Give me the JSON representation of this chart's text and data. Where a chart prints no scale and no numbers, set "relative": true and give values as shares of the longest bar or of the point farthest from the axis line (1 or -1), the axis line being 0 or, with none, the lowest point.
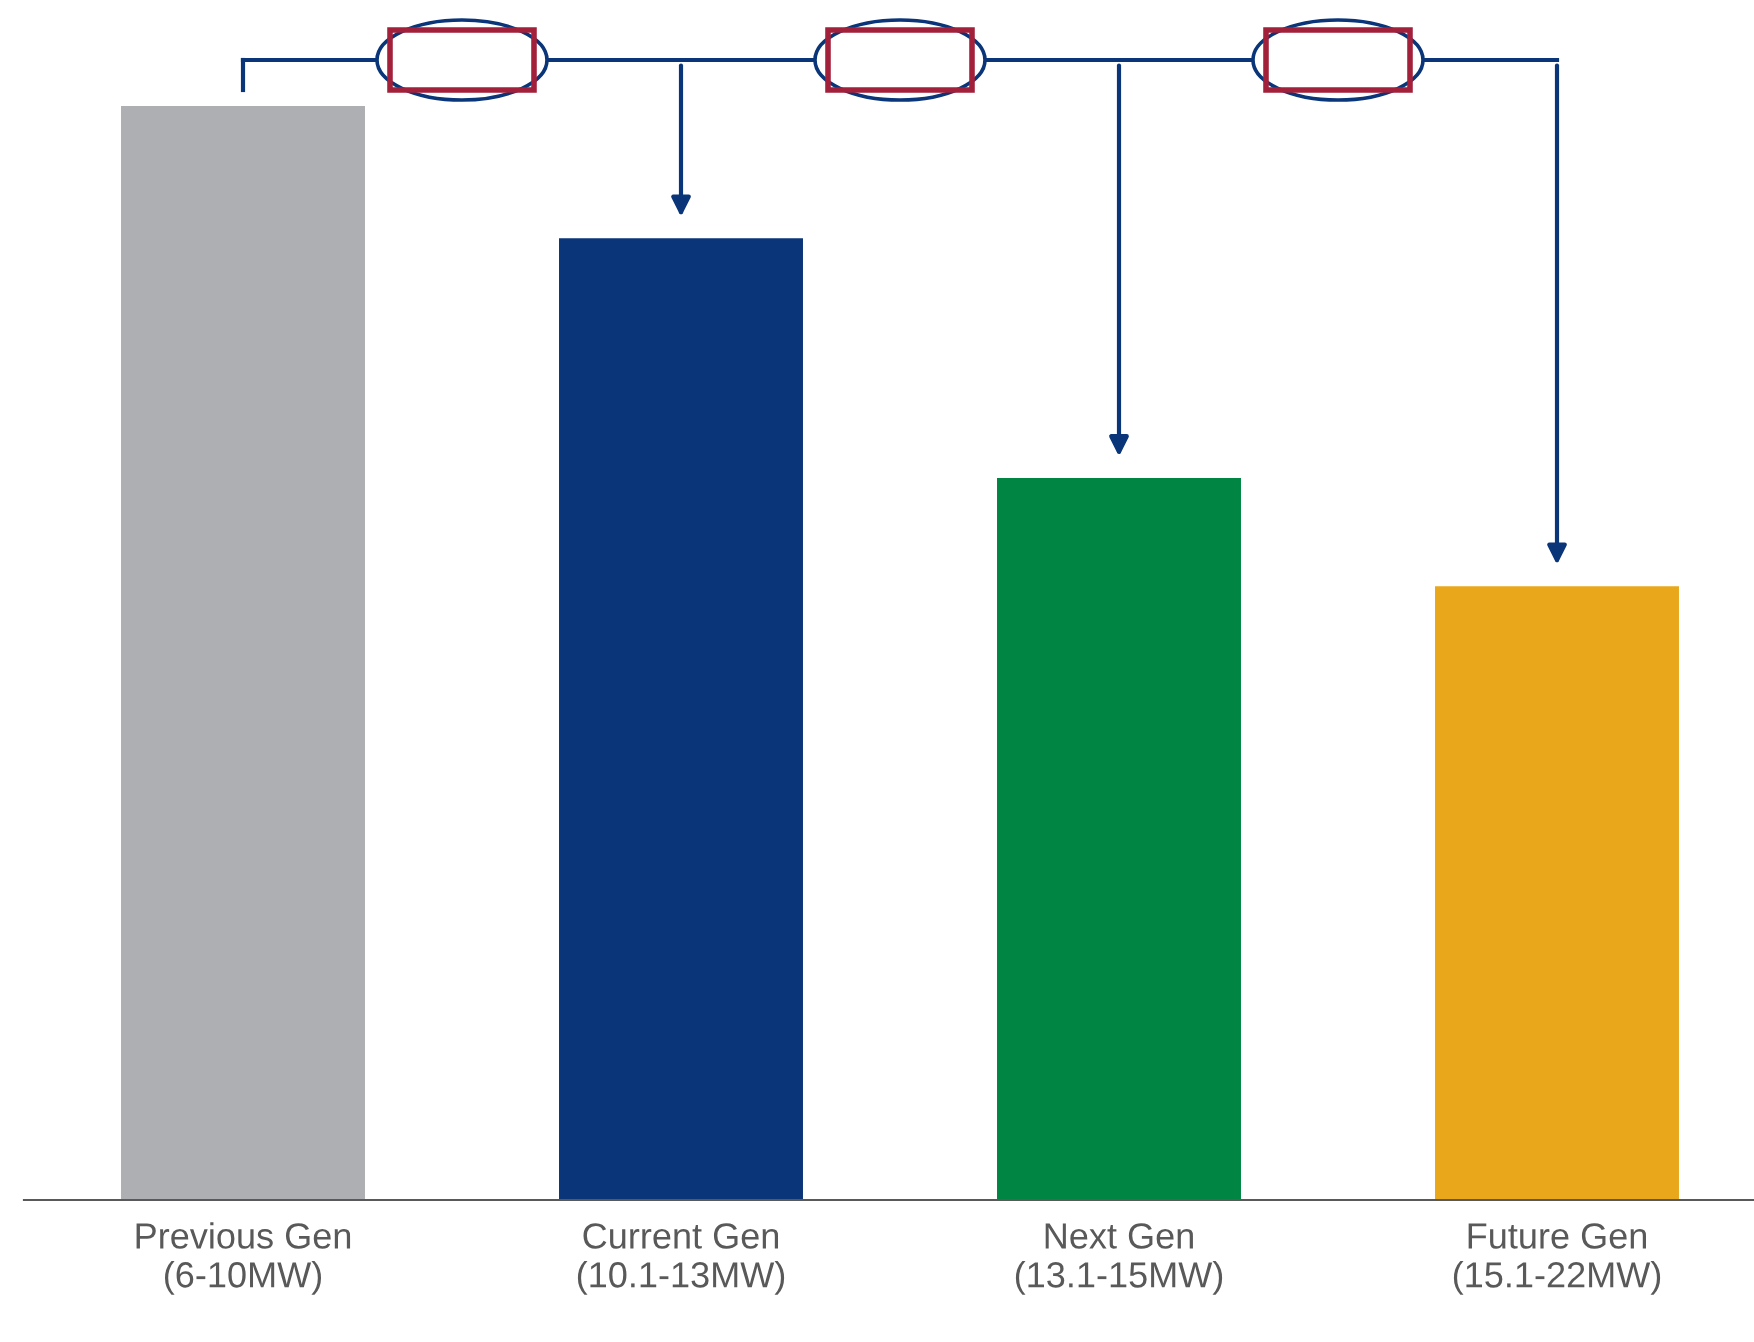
{
  "chart_data": {
    "type": "bar",
    "relative": true,
    "categories": [
      "Previous Gen\n(6-10MW)",
      "Current Gen\n(10.1-13MW)",
      "Next Gen\n(13.1-15MW)",
      "Future Gen\n(15.1-22MW)"
    ],
    "values": [
      1,
      0.879,
      0.66,
      0.561
    ],
    "colors": [
      "#adafb2",
      "#0a3578",
      "#008542",
      "#e9a81c"
    ],
    "grid": false,
    "legend": false
  }
}
